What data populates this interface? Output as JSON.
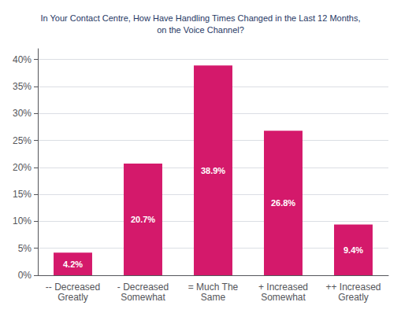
{
  "chart_data": {
    "type": "bar",
    "title": "In Your Contact Centre, How Have Handling Times Changed in the Last 12 Months,\non the Voice Channel?",
    "categories": [
      "-- Decreased\nGreatly",
      "- Decreased\nSomewhat",
      "= Much The\nSame",
      "+ Increased\nSomewhat",
      "++ Increased\nGreatly"
    ],
    "values": [
      4.2,
      20.7,
      38.9,
      26.8,
      9.4
    ],
    "value_labels": [
      "4.2%",
      "20.7%",
      "38.9%",
      "26.8%",
      "9.4%"
    ],
    "data_labels": true,
    "color": "#d4196b",
    "ylim": [
      0,
      42
    ],
    "yticks": [
      {
        "value": 0,
        "label": "0%"
      },
      {
        "value": 5,
        "label": "5%"
      },
      {
        "value": 10,
        "label": "10%"
      },
      {
        "value": 15,
        "label": "15%"
      },
      {
        "value": 20,
        "label": "20%"
      },
      {
        "value": 25,
        "label": "25%"
      },
      {
        "value": 30,
        "label": "30%"
      },
      {
        "value": 35,
        "label": "35%"
      },
      {
        "value": 40,
        "label": "40%"
      }
    ],
    "grid": true
  }
}
